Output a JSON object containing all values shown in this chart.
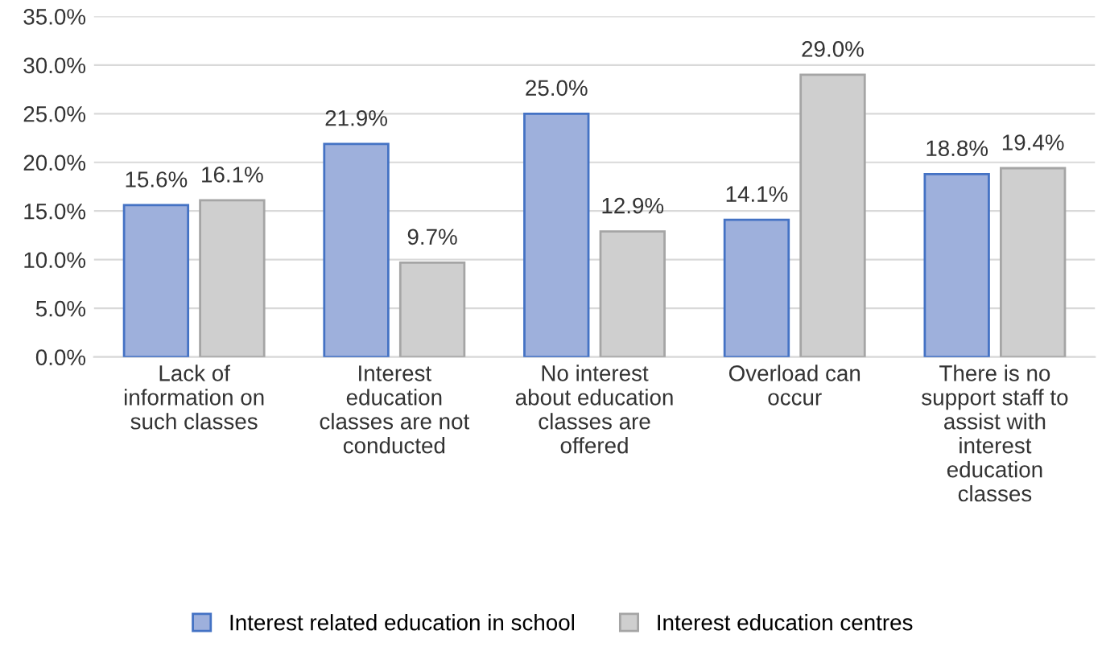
{
  "chart_data": {
    "type": "bar",
    "categories": [
      "Lack of\ninformation on\nsuch classes",
      "Interest\neducation\nclasses are not\nconducted",
      "No interest\nabout education\nclasses are\noffered",
      "Overload can\noccur",
      "There is no\nsupport staff to\nassist with\ninterest\neducation\nclasses"
    ],
    "series": [
      {
        "name": "Interest related education in school",
        "color": "#9eb0dc",
        "values": [
          15.6,
          21.9,
          25.0,
          14.1,
          18.8
        ],
        "value_labels": [
          "15.6%",
          "21.9%",
          "25.0%",
          "14.1%",
          "18.8%"
        ]
      },
      {
        "name": "Interest education centres",
        "color": "#cfcfcf",
        "values": [
          16.1,
          9.7,
          12.9,
          29.0,
          19.4
        ],
        "value_labels": [
          "16.1%",
          "9.7%",
          "12.9%",
          "29.0%",
          "19.4%"
        ]
      }
    ],
    "ylim": [
      0,
      35
    ],
    "yticks": [
      {
        "value": 0,
        "label": "0.0%"
      },
      {
        "value": 5,
        "label": "5.0%"
      },
      {
        "value": 10,
        "label": "10.0%"
      },
      {
        "value": 15,
        "label": "15.0%"
      },
      {
        "value": 20,
        "label": "20.0%"
      },
      {
        "value": 25,
        "label": "25.0%"
      },
      {
        "value": 30,
        "label": "30.0%"
      },
      {
        "value": 35,
        "label": "35.0%"
      }
    ],
    "grid": "y",
    "legend": "bottom"
  }
}
